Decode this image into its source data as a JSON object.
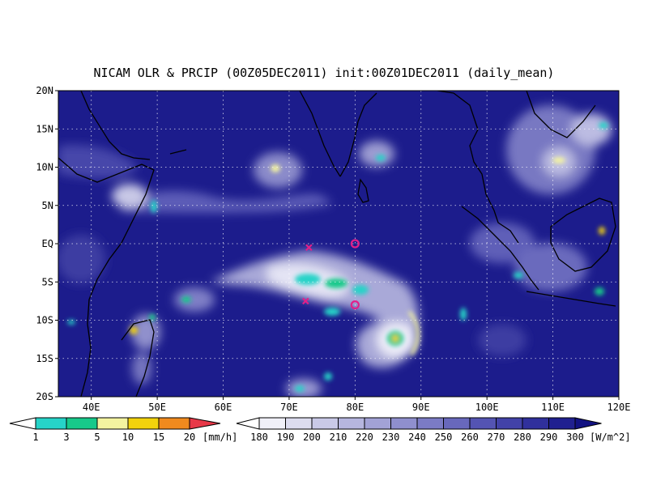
{
  "title": "NICAM OLR & PRCIP (00Z05DEC2011) init:00Z01DEC2011 (daily_mean)",
  "map": {
    "lon_range": [
      35,
      120
    ],
    "lat_range": [
      -20,
      20
    ],
    "x_ticks": [
      "40E",
      "50E",
      "60E",
      "70E",
      "80E",
      "90E",
      "100E",
      "110E",
      "120E"
    ],
    "x_tick_values": [
      40,
      50,
      60,
      70,
      80,
      90,
      100,
      110,
      120
    ],
    "y_ticks": [
      "20N",
      "15N",
      "10N",
      "5N",
      "EQ",
      "5S",
      "10S",
      "15S",
      "20S"
    ],
    "y_tick_values": [
      20,
      15,
      10,
      5,
      0,
      -5,
      -10,
      -15,
      -20
    ],
    "grid": "dotted",
    "markers": [
      {
        "type": "cross",
        "lon": 73,
        "lat": -0.5,
        "color": "#e0208a"
      },
      {
        "type": "circle",
        "lon": 80,
        "lat": 0,
        "color": "#e0208a"
      },
      {
        "type": "cross",
        "lon": 72.5,
        "lat": -7.5,
        "color": "#e0208a"
      },
      {
        "type": "circle",
        "lon": 80,
        "lat": -8,
        "color": "#e0208a"
      }
    ]
  },
  "precip_bar": {
    "labels": [
      "1",
      "3",
      "5",
      "10",
      "15",
      "20"
    ],
    "unit": "[mm/h]",
    "colors": [
      "#26d3c8",
      "#17c98a",
      "#f4f4a0",
      "#f2d20c",
      "#f08a1e",
      "#e83848"
    ]
  },
  "olr_bar": {
    "labels": [
      "180",
      "190",
      "200",
      "210",
      "220",
      "230",
      "240",
      "250",
      "260",
      "270",
      "280",
      "290",
      "300"
    ],
    "unit": "[W/m^2]",
    "colors": [
      "#f0f0f8",
      "#dcdcef",
      "#c9c9e7",
      "#b6b6df",
      "#a2a2d6",
      "#8f8fce",
      "#7b7bc5",
      "#6868bc",
      "#5454b3",
      "#4242a8",
      "#30309c",
      "#202090",
      "#121282"
    ]
  }
}
